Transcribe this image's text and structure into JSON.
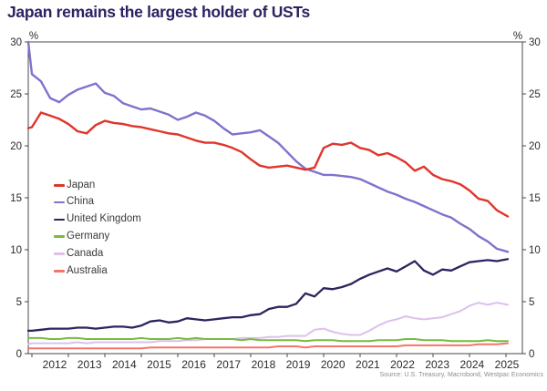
{
  "chart_data": {
    "type": "line",
    "title": "Japan remains the largest holder of USTs",
    "source": "Source: U.S. Treasury, Macrobond, Westpac Economics",
    "axis_unit_left": "%",
    "axis_unit_right": "%",
    "grid": false,
    "legend_position": "inside-center-left",
    "ylim": [
      0,
      30
    ],
    "xlim": [
      2011.9,
      2025.45
    ],
    "yticks": [
      0,
      5,
      10,
      15,
      20,
      25,
      30
    ],
    "xticks": [
      2012,
      2013,
      2014,
      2015,
      2016,
      2017,
      2018,
      2019,
      2020,
      2021,
      2022,
      2023,
      2024,
      2025
    ],
    "x": [
      2011.9,
      2012.0,
      2012.25,
      2012.5,
      2012.75,
      2013.0,
      2013.25,
      2013.5,
      2013.75,
      2014.0,
      2014.25,
      2014.5,
      2014.75,
      2015.0,
      2015.25,
      2015.5,
      2015.75,
      2016.0,
      2016.25,
      2016.5,
      2016.75,
      2017.0,
      2017.25,
      2017.5,
      2017.75,
      2018.0,
      2018.25,
      2018.5,
      2018.75,
      2019.0,
      2019.25,
      2019.5,
      2019.75,
      2020.0,
      2020.25,
      2020.5,
      2020.75,
      2021.0,
      2021.25,
      2021.5,
      2021.75,
      2022.0,
      2022.25,
      2022.5,
      2022.75,
      2023.0,
      2023.25,
      2023.5,
      2023.75,
      2024.0,
      2024.25,
      2024.5,
      2024.75,
      2025.05
    ],
    "series": [
      {
        "name": "Japan",
        "color": "#e0352b",
        "width": 2.4,
        "values": [
          21.7,
          21.8,
          23.2,
          22.9,
          22.6,
          22.1,
          21.4,
          21.2,
          22.0,
          22.4,
          22.2,
          22.1,
          21.9,
          21.8,
          21.6,
          21.4,
          21.2,
          21.1,
          20.8,
          20.5,
          20.3,
          20.3,
          20.1,
          19.8,
          19.4,
          18.7,
          18.1,
          17.9,
          18.0,
          18.1,
          17.9,
          17.7,
          17.9,
          19.8,
          20.2,
          20.1,
          20.3,
          19.8,
          19.6,
          19.1,
          19.3,
          18.9,
          18.4,
          17.6,
          18.0,
          17.2,
          16.8,
          16.6,
          16.3,
          15.7,
          14.9,
          14.7,
          13.8,
          13.2
        ]
      },
      {
        "name": "China",
        "color": "#7f72cd",
        "width": 2.4,
        "values": [
          30.0,
          26.9,
          26.2,
          24.6,
          24.2,
          24.9,
          25.4,
          25.7,
          26.0,
          25.1,
          24.8,
          24.1,
          23.8,
          23.5,
          23.6,
          23.3,
          23.0,
          22.5,
          22.8,
          23.2,
          22.9,
          22.4,
          21.7,
          21.1,
          21.2,
          21.3,
          21.5,
          20.9,
          20.3,
          19.4,
          18.5,
          17.8,
          17.5,
          17.2,
          17.2,
          17.1,
          17.0,
          16.8,
          16.4,
          16.0,
          15.6,
          15.3,
          14.9,
          14.6,
          14.2,
          13.8,
          13.4,
          13.1,
          12.5,
          12.0,
          11.3,
          10.8,
          10.1,
          9.8
        ]
      },
      {
        "name": "United Kingdom",
        "color": "#2a2560",
        "width": 2.3,
        "values": [
          2.2,
          2.2,
          2.3,
          2.4,
          2.4,
          2.4,
          2.5,
          2.5,
          2.4,
          2.5,
          2.6,
          2.6,
          2.5,
          2.7,
          3.1,
          3.2,
          3.0,
          3.1,
          3.4,
          3.3,
          3.2,
          3.3,
          3.4,
          3.5,
          3.5,
          3.7,
          3.8,
          4.3,
          4.5,
          4.5,
          4.8,
          5.8,
          5.5,
          6.3,
          6.2,
          6.4,
          6.7,
          7.2,
          7.6,
          7.9,
          8.2,
          7.9,
          8.4,
          8.9,
          8.0,
          7.6,
          8.1,
          8.0,
          8.4,
          8.8,
          8.9,
          9.0,
          8.9,
          9.1
        ]
      },
      {
        "name": "Germany",
        "color": "#76bc3f",
        "width": 2.0,
        "values": [
          1.5,
          1.5,
          1.5,
          1.4,
          1.4,
          1.5,
          1.5,
          1.4,
          1.4,
          1.4,
          1.4,
          1.4,
          1.4,
          1.5,
          1.4,
          1.4,
          1.4,
          1.5,
          1.4,
          1.5,
          1.4,
          1.4,
          1.4,
          1.4,
          1.3,
          1.4,
          1.3,
          1.3,
          1.3,
          1.3,
          1.3,
          1.2,
          1.3,
          1.3,
          1.3,
          1.2,
          1.2,
          1.2,
          1.2,
          1.3,
          1.3,
          1.3,
          1.4,
          1.4,
          1.3,
          1.3,
          1.3,
          1.2,
          1.2,
          1.2,
          1.2,
          1.3,
          1.2,
          1.2
        ]
      },
      {
        "name": "Canada",
        "color": "#ddc0ec",
        "width": 2.0,
        "values": [
          0.9,
          1.0,
          1.0,
          1.0,
          1.0,
          1.0,
          1.1,
          1.0,
          1.1,
          1.1,
          1.1,
          1.1,
          1.1,
          1.1,
          1.1,
          1.2,
          1.2,
          1.2,
          1.3,
          1.3,
          1.4,
          1.4,
          1.4,
          1.4,
          1.5,
          1.5,
          1.5,
          1.6,
          1.6,
          1.7,
          1.7,
          1.7,
          2.3,
          2.4,
          2.1,
          1.9,
          1.8,
          1.8,
          2.2,
          2.7,
          3.1,
          3.3,
          3.6,
          3.4,
          3.3,
          3.4,
          3.5,
          3.8,
          4.1,
          4.6,
          4.9,
          4.7,
          4.9,
          4.7
        ]
      },
      {
        "name": "Australia",
        "color": "#f2756a",
        "width": 2.0,
        "values": [
          0.5,
          0.5,
          0.5,
          0.5,
          0.5,
          0.5,
          0.5,
          0.5,
          0.5,
          0.5,
          0.5,
          0.5,
          0.5,
          0.5,
          0.6,
          0.6,
          0.6,
          0.6,
          0.6,
          0.6,
          0.6,
          0.6,
          0.6,
          0.6,
          0.6,
          0.6,
          0.6,
          0.6,
          0.7,
          0.7,
          0.7,
          0.6,
          0.7,
          0.7,
          0.7,
          0.7,
          0.7,
          0.7,
          0.7,
          0.7,
          0.7,
          0.7,
          0.8,
          0.8,
          0.8,
          0.8,
          0.8,
          0.8,
          0.8,
          0.8,
          0.9,
          0.9,
          0.9,
          1.0
        ]
      }
    ],
    "style": {
      "title_color": "#2a2362",
      "frame_color": "#46484c",
      "tick_label_color": "#2b2b2b",
      "source_color": "#898b8e"
    }
  }
}
